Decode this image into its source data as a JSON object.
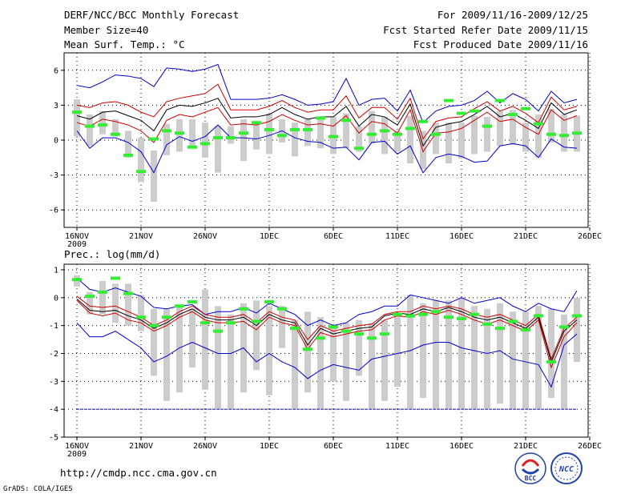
{
  "header": {
    "title": "DERF/NCC/BCC Monthly Forecast",
    "member_size": "Member Size=40",
    "variable": "Mean Surf. Temp.: °C",
    "period": "For 2009/11/16-2009/12/25",
    "started": "Fcst Started Refer Date 2009/11/15",
    "produced": "Fcst Produced Date 2009/11/16"
  },
  "footer": {
    "url": "http://cmdp.ncc.cma.gov.cn",
    "grads": "GrADS: COLA/IGES",
    "logo_left": "BCC",
    "logo_right": "NCC"
  },
  "colors": {
    "ensemble_mean": "#000000",
    "one_sigma": "#cc0000",
    "envelope": "#0000cc",
    "member_box": "#cccccc",
    "median": "#33ee33",
    "zero_line": "#0000cc"
  },
  "chart_data": [
    {
      "type": "line",
      "title": "Mean Surf. Temp.: °C",
      "x_tick_labels": [
        "16NOV",
        "21NOV",
        "26NOV",
        "1DEC",
        "6DEC",
        "11DEC",
        "16DEC",
        "21DEC",
        "26DEC"
      ],
      "x_year_label": "2009",
      "ylim": [
        -7.5,
        7.5
      ],
      "y_ticks": [
        6,
        3,
        0,
        -3,
        -6
      ],
      "y_tick_labels": [
        "6",
        "3",
        "0",
        "-3",
        "-6"
      ],
      "x_days": [
        1,
        2,
        3,
        4,
        5,
        6,
        7,
        8,
        9,
        10,
        11,
        12,
        13,
        14,
        15,
        16,
        17,
        18,
        19,
        20,
        21,
        22,
        23,
        24,
        25,
        26,
        27,
        28,
        29,
        30,
        31,
        32,
        33,
        34,
        35,
        36,
        37,
        38,
        39,
        40
      ],
      "series": [
        {
          "name": "max",
          "values": [
            4.7,
            4.5,
            5.0,
            5.6,
            5.5,
            5.3,
            4.6,
            6.2,
            6.1,
            5.9,
            6.1,
            6.5,
            3.5,
            3.5,
            3.5,
            3.6,
            3.9,
            3.5,
            3.0,
            3.1,
            3.3,
            5.3,
            3.0,
            3.5,
            3.6,
            2.5,
            4.3,
            1.5,
            2.5,
            2.9,
            3.0,
            3.4,
            4.2,
            3.2,
            4.0,
            3.5,
            2.5,
            4.2,
            3.2,
            3.5
          ]
        },
        {
          "name": "plus_sigma",
          "values": [
            3.0,
            2.8,
            3.2,
            3.3,
            3.0,
            2.4,
            2.0,
            3.3,
            3.6,
            3.8,
            4.0,
            4.8,
            2.6,
            2.6,
            2.6,
            2.9,
            3.4,
            2.8,
            2.4,
            2.6,
            2.6,
            3.8,
            1.9,
            2.8,
            2.8,
            1.8,
            3.6,
            0.1,
            1.6,
            1.9,
            2.0,
            2.7,
            3.3,
            2.5,
            2.9,
            2.3,
            1.5,
            3.7,
            2.6,
            2.9
          ]
        },
        {
          "name": "mean",
          "values": [
            2.1,
            1.8,
            2.4,
            2.5,
            2.1,
            1.7,
            0.8,
            2.6,
            3.0,
            2.9,
            3.2,
            3.6,
            1.9,
            2.0,
            2.0,
            2.2,
            2.8,
            2.2,
            1.8,
            2.0,
            2.0,
            2.9,
            1.2,
            2.2,
            2.0,
            1.3,
            3.1,
            -0.5,
            1.1,
            1.4,
            1.6,
            2.2,
            2.9,
            2.0,
            2.3,
            1.7,
            1.0,
            3.2,
            2.2,
            2.6
          ]
        },
        {
          "name": "minus_sigma",
          "values": [
            1.5,
            1.2,
            1.8,
            1.6,
            1.3,
            0.8,
            -0.2,
            1.7,
            2.2,
            2.0,
            2.4,
            2.8,
            1.3,
            1.4,
            1.3,
            1.6,
            2.2,
            1.7,
            1.3,
            1.4,
            1.2,
            2.1,
            0.6,
            1.6,
            1.4,
            0.6,
            2.6,
            -1.0,
            0.6,
            0.7,
            1.0,
            1.7,
            2.4,
            1.6,
            1.8,
            1.1,
            0.5,
            2.6,
            1.7,
            2.1
          ]
        },
        {
          "name": "min",
          "values": [
            0.8,
            -0.7,
            0.2,
            0.2,
            -0.2,
            -1.0,
            -2.8,
            -0.4,
            0.3,
            -0.1,
            0.3,
            1.3,
            0.2,
            0.2,
            0.1,
            0.4,
            0.8,
            0.2,
            -0.1,
            -0.2,
            -0.7,
            -0.6,
            -1.7,
            -0.2,
            -0.1,
            -1.2,
            -0.5,
            -2.8,
            -1.5,
            -1.2,
            -1.4,
            -1.9,
            -1.8,
            -0.5,
            -0.3,
            -0.5,
            -1.5,
            0.1,
            -0.6,
            -0.7
          ]
        }
      ],
      "boxes": {
        "low": [
          0.3,
          -0.5,
          0.5,
          0.3,
          -1.5,
          -3.6,
          -5.3,
          -1.3,
          -1.0,
          -0.6,
          -1.5,
          -2.8,
          -0.3,
          -1.8,
          -0.8,
          -1.2,
          -0.2,
          -1.4,
          -0.5,
          -0.7,
          -1.2,
          -0.7,
          -1.0,
          -0.3,
          -1.2,
          -1.0,
          -2.0,
          -2.5,
          -1.2,
          -2.0,
          -1.6,
          -1.2,
          -1.0,
          -0.5,
          -0.4,
          -1.0,
          -1.5,
          -0.2,
          -1.0,
          -1.0
        ],
        "high": [
          3.5,
          2.2,
          2.5,
          1.8,
          0.8,
          0.2,
          -0.9,
          1.4,
          1.8,
          1.8,
          1.5,
          1.2,
          1.2,
          1.8,
          1.5,
          2.3,
          1.8,
          1.5,
          1.8,
          2.0,
          2.0,
          2.3,
          1.2,
          2.5,
          2.0,
          0.8,
          2.1,
          0.8,
          1.5,
          1.5,
          1.5,
          2.1,
          2.0,
          2.5,
          2.6,
          1.5,
          2.2,
          2.7,
          2.2,
          2.1
        ]
      },
      "medians": [
        2.4,
        1.2,
        1.3,
        0.5,
        -1.3,
        -2.7,
        0.1,
        0.8,
        0.6,
        -0.6,
        -0.3,
        0.2,
        0.2,
        0.6,
        1.5,
        0.9,
        0.4,
        0.9,
        0.9,
        1.9,
        0.3,
        1.7,
        -0.7,
        0.5,
        0.8,
        0.5,
        1.0,
        1.6,
        0.5,
        3.4,
        2.3,
        2.5,
        1.2,
        3.4,
        2.2,
        2.7,
        1.4,
        0.5,
        0.4,
        0.6
      ],
      "zero_line": false
    },
    {
      "type": "line",
      "title": "Prec.: log(mm/d)",
      "x_tick_labels": [
        "16NOV",
        "21NOV",
        "26NOV",
        "1DEC",
        "6DEC",
        "11DEC",
        "16DEC",
        "21DEC",
        "26DEC"
      ],
      "x_year_label": "2009",
      "ylim": [
        -5,
        1.2
      ],
      "y_ticks": [
        1,
        0,
        -1,
        -2,
        -3,
        -4,
        -5
      ],
      "y_tick_labels": [
        "1",
        "0",
        "-1",
        "-2",
        "-3",
        "-4",
        "-5"
      ],
      "x_days": [
        1,
        2,
        3,
        4,
        5,
        6,
        7,
        8,
        9,
        10,
        11,
        12,
        13,
        14,
        15,
        16,
        17,
        18,
        19,
        20,
        21,
        22,
        23,
        24,
        25,
        26,
        27,
        28,
        29,
        30,
        31,
        32,
        33,
        34,
        35,
        36,
        37,
        38,
        39,
        40
      ],
      "series": [
        {
          "name": "max",
          "values": [
            0.7,
            0.3,
            0.2,
            0.35,
            0.2,
            0.05,
            -0.35,
            -0.4,
            -0.3,
            -0.25,
            -0.6,
            -0.5,
            -0.5,
            -0.35,
            -0.55,
            -0.2,
            -0.4,
            -0.6,
            -1.0,
            -0.8,
            -1.0,
            -0.9,
            -0.6,
            -0.5,
            -0.3,
            -0.3,
            0.1,
            0.0,
            -0.1,
            -0.2,
            0.0,
            -0.2,
            -0.1,
            0.0,
            -0.3,
            -0.5,
            -0.2,
            -0.4,
            -0.5,
            0.25
          ]
        },
        {
          "name": "plus_sigma",
          "values": [
            0.05,
            -0.3,
            -0.35,
            -0.3,
            -0.5,
            -0.7,
            -1.0,
            -0.8,
            -0.5,
            -0.3,
            -0.6,
            -0.7,
            -0.7,
            -0.6,
            -0.9,
            -0.5,
            -0.7,
            -0.8,
            -1.5,
            -1.0,
            -1.2,
            -1.1,
            -1.0,
            -0.95,
            -0.6,
            -0.5,
            -0.5,
            -0.3,
            -0.4,
            -0.3,
            -0.4,
            -0.6,
            -0.7,
            -0.6,
            -0.8,
            -1.0,
            -0.6,
            -2.2,
            -1.1,
            -0.7
          ]
        },
        {
          "name": "mean",
          "values": [
            -0.05,
            -0.45,
            -0.5,
            -0.45,
            -0.65,
            -0.8,
            -1.1,
            -0.9,
            -0.6,
            -0.4,
            -0.7,
            -0.8,
            -0.8,
            -0.7,
            -1.0,
            -0.6,
            -0.8,
            -0.9,
            -1.7,
            -1.1,
            -1.3,
            -1.2,
            -1.1,
            -1.05,
            -0.65,
            -0.55,
            -0.6,
            -0.4,
            -0.5,
            -0.35,
            -0.5,
            -0.7,
            -0.8,
            -0.7,
            -0.9,
            -1.1,
            -0.7,
            -2.3,
            -1.2,
            -0.8
          ]
        },
        {
          "name": "minus_sigma",
          "values": [
            -0.1,
            -0.55,
            -0.65,
            -0.55,
            -0.8,
            -0.9,
            -1.2,
            -1.0,
            -0.7,
            -0.5,
            -0.8,
            -0.9,
            -0.9,
            -0.85,
            -1.15,
            -0.7,
            -0.9,
            -1.0,
            -1.85,
            -1.25,
            -1.4,
            -1.3,
            -1.2,
            -1.15,
            -0.8,
            -0.65,
            -0.7,
            -0.5,
            -0.6,
            -0.45,
            -0.6,
            -0.8,
            -0.95,
            -0.8,
            -1.0,
            -1.2,
            -0.8,
            -2.5,
            -1.4,
            -0.9
          ]
        },
        {
          "name": "min",
          "values": [
            -0.9,
            -1.4,
            -1.4,
            -1.2,
            -1.5,
            -1.8,
            -2.3,
            -2.1,
            -1.8,
            -1.6,
            -1.8,
            -2.0,
            -2.0,
            -1.8,
            -2.3,
            -2.0,
            -2.3,
            -2.5,
            -2.9,
            -2.6,
            -2.4,
            -2.5,
            -2.6,
            -2.2,
            -2.1,
            -2.0,
            -1.9,
            -1.7,
            -1.6,
            -1.6,
            -1.8,
            -1.9,
            -2.0,
            -1.9,
            -2.2,
            -2.3,
            -2.4,
            -3.2,
            -1.7,
            -1.3
          ]
        }
      ],
      "boxes": {
        "low": [
          0.4,
          -0.6,
          -0.6,
          -0.9,
          -1.0,
          -1.2,
          -2.8,
          -3.7,
          -3.4,
          -2.5,
          -3.3,
          -4.0,
          -4.0,
          -3.4,
          -2.6,
          -3.5,
          -1.8,
          -4.0,
          -3.4,
          -4.0,
          -3.0,
          -3.7,
          -2.8,
          -4.0,
          -3.7,
          -3.2,
          -4.0,
          -3.6,
          -4.0,
          -4.0,
          -4.0,
          -4.0,
          -4.0,
          -3.8,
          -4.0,
          -4.0,
          -4.0,
          -3.6,
          -4.0,
          -2.3
        ],
        "high": [
          0.8,
          0.2,
          0.6,
          0.5,
          0.5,
          0.1,
          -0.4,
          -0.4,
          -0.3,
          -0.4,
          0.3,
          -0.3,
          -0.6,
          -0.2,
          -0.1,
          -0.3,
          -0.3,
          -0.8,
          -0.5,
          -0.7,
          -1.0,
          -0.9,
          -0.8,
          -0.9,
          -0.8,
          -0.6,
          0.1,
          -0.2,
          -0.1,
          -0.1,
          0.0,
          -0.3,
          -0.4,
          -0.2,
          -0.5,
          -0.5,
          -0.3,
          -0.4,
          -0.6,
          0.0
        ]
      },
      "medians": [
        0.65,
        0.05,
        0.2,
        0.7,
        0.15,
        -0.7,
        -1.0,
        -0.7,
        -0.3,
        -0.15,
        -0.9,
        -1.2,
        -0.9,
        -0.4,
        -0.85,
        -0.15,
        -0.4,
        -1.1,
        -1.85,
        -1.45,
        -1.05,
        -1.2,
        -1.3,
        -1.45,
        -1.3,
        -0.6,
        -0.65,
        -0.6,
        -0.5,
        -0.7,
        -0.75,
        -0.6,
        -0.95,
        -1.1,
        -0.85,
        -1.15,
        -0.65,
        -2.3,
        -1.05,
        -0.65
      ],
      "zero_line": true,
      "baseline_value": -4
    }
  ]
}
